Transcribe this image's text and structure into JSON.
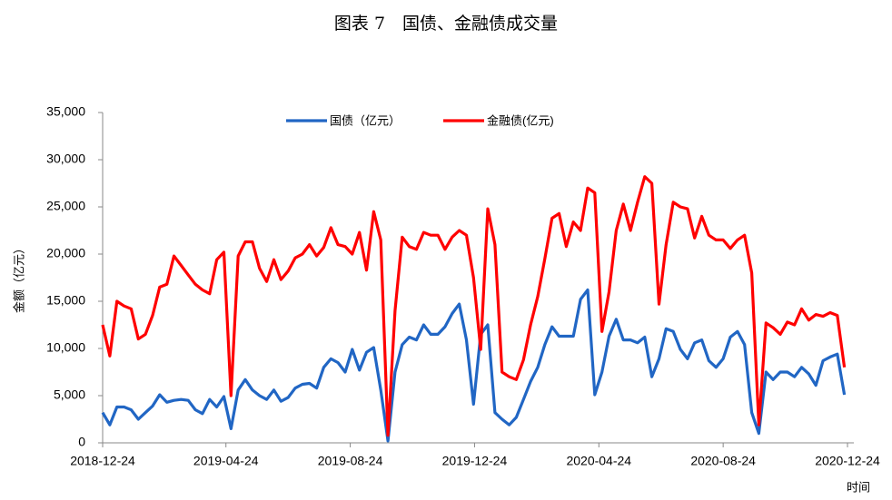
{
  "chart_data": {
    "type": "line",
    "title": "图表 7　国债、金融债成交量",
    "y_label": "金额（亿元）",
    "x_label": "时间",
    "x": [
      "2018-12-24",
      "2018-12-31",
      "2019-01-07",
      "2019-01-14",
      "2019-01-21",
      "2019-01-28",
      "2019-02-04",
      "2019-02-11",
      "2019-02-18",
      "2019-02-25",
      "2019-03-04",
      "2019-03-11",
      "2019-03-18",
      "2019-03-25",
      "2019-04-01",
      "2019-04-08",
      "2019-04-15",
      "2019-04-22",
      "2019-04-29",
      "2019-05-06",
      "2019-05-13",
      "2019-05-20",
      "2019-05-27",
      "2019-06-03",
      "2019-06-10",
      "2019-06-17",
      "2019-06-24",
      "2019-07-01",
      "2019-07-08",
      "2019-07-15",
      "2019-07-22",
      "2019-07-29",
      "2019-08-05",
      "2019-08-12",
      "2019-08-19",
      "2019-08-26",
      "2019-09-02",
      "2019-09-09",
      "2019-09-16",
      "2019-09-23",
      "2019-09-30",
      "2019-10-07",
      "2019-10-14",
      "2019-10-21",
      "2019-10-28",
      "2019-11-04",
      "2019-11-11",
      "2019-11-18",
      "2019-11-25",
      "2019-12-02",
      "2019-12-09",
      "2019-12-16",
      "2019-12-23",
      "2019-12-30",
      "2020-01-06",
      "2020-01-13",
      "2020-01-20",
      "2020-01-27",
      "2020-02-03",
      "2020-02-10",
      "2020-02-17",
      "2020-02-24",
      "2020-03-02",
      "2020-03-09",
      "2020-03-16",
      "2020-03-23",
      "2020-03-30",
      "2020-04-06",
      "2020-04-13",
      "2020-04-20",
      "2020-04-27",
      "2020-05-04",
      "2020-05-11",
      "2020-05-18",
      "2020-05-25",
      "2020-06-01",
      "2020-06-08",
      "2020-06-15",
      "2020-06-22",
      "2020-06-29",
      "2020-07-06",
      "2020-07-13",
      "2020-07-20",
      "2020-07-27",
      "2020-08-03",
      "2020-08-10",
      "2020-08-17",
      "2020-08-24",
      "2020-08-31",
      "2020-09-07",
      "2020-09-14",
      "2020-09-21",
      "2020-09-28",
      "2020-10-05",
      "2020-10-12",
      "2020-10-19",
      "2020-10-26",
      "2020-11-02",
      "2020-11-09",
      "2020-11-16",
      "2020-11-23",
      "2020-11-30",
      "2020-12-07",
      "2020-12-14",
      "2020-12-21"
    ],
    "series": [
      {
        "name": "国债（亿元）",
        "color": "#2166c4",
        "values": [
          3200,
          1900,
          3800,
          3800,
          3500,
          2500,
          3200,
          3900,
          5100,
          4300,
          4500,
          4600,
          4500,
          3500,
          3100,
          4600,
          3800,
          4900,
          1500,
          5600,
          6700,
          5600,
          5000,
          4600,
          5600,
          4400,
          4800,
          5800,
          6200,
          6300,
          5800,
          8000,
          8900,
          8500,
          7500,
          9900,
          7700,
          9600,
          10100,
          5600,
          200,
          7500,
          10400,
          11200,
          10900,
          12500,
          11500,
          11500,
          12300,
          13700,
          14700,
          10900,
          4100,
          11500,
          12500,
          3200,
          2500,
          1900,
          2700,
          4600,
          6500,
          8000,
          10400,
          12300,
          11300,
          11300,
          11300,
          15200,
          16200,
          5100,
          7500,
          11300,
          13100,
          10900,
          10900,
          10600,
          11200,
          7000,
          8900,
          12100,
          11800,
          9900,
          8900,
          10600,
          10900,
          8700,
          8000,
          8900,
          11200,
          11800,
          10400,
          3200,
          1000,
          7500,
          6700,
          7500,
          7500,
          7000,
          8000,
          7300,
          6100,
          8700,
          9100,
          9400,
          5100
        ]
      },
      {
        "name": "金融债(亿元)",
        "color": "#ff0000",
        "values": [
          12500,
          9200,
          15000,
          14500,
          14200,
          11000,
          11500,
          13500,
          16500,
          16800,
          19800,
          18800,
          17800,
          16800,
          16200,
          15800,
          19400,
          20200,
          5000,
          19800,
          21300,
          21300,
          18500,
          17100,
          19400,
          17300,
          18200,
          19600,
          20000,
          21000,
          19800,
          20700,
          22800,
          21000,
          20800,
          20000,
          22300,
          18300,
          24500,
          21500,
          800,
          14000,
          21800,
          20800,
          20500,
          22300,
          22000,
          22000,
          20500,
          21800,
          22500,
          22000,
          17500,
          9900,
          24800,
          21000,
          7500,
          7000,
          6700,
          8800,
          12500,
          15500,
          19500,
          23800,
          24300,
          20800,
          23400,
          22500,
          27000,
          26500,
          11800,
          16000,
          22500,
          25300,
          22500,
          25500,
          28200,
          27500,
          14700,
          21000,
          25500,
          25000,
          24800,
          21700,
          24000,
          22000,
          21500,
          21500,
          20600,
          21500,
          22000,
          18000,
          1900,
          12700,
          12200,
          11500,
          12800,
          12500,
          14200,
          13000,
          13600,
          13400,
          13800,
          13500,
          8000
        ]
      }
    ],
    "xlim": [
      "2018-12-24",
      "2020-12-28"
    ],
    "xticks": [
      "2018-12-24",
      "2019-04-24",
      "2019-08-24",
      "2019-12-24",
      "2020-04-24",
      "2020-08-24",
      "2020-12-24"
    ],
    "ylim": [
      0,
      35000
    ],
    "yticks": [
      0,
      {
        "value": 5000,
        "label": "5,000"
      },
      {
        "value": 10000,
        "label": "10,000"
      },
      {
        "value": 15000,
        "label": "15,000"
      },
      {
        "value": 20000,
        "label": "20,000"
      },
      {
        "value": 25000,
        "label": "25,000"
      },
      {
        "value": 30000,
        "label": "30,000"
      },
      {
        "value": 35000,
        "label": "35,000"
      }
    ],
    "grid": false,
    "legend": "top"
  }
}
